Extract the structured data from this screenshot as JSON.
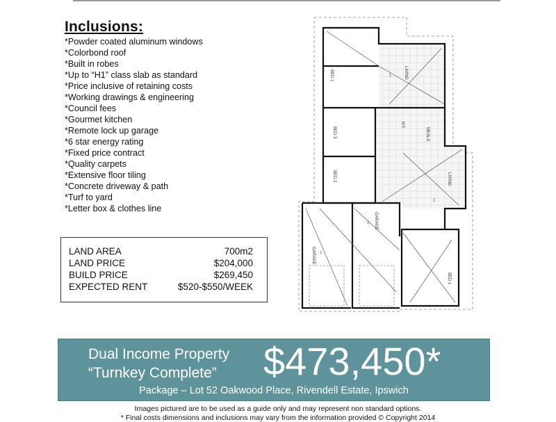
{
  "inclusions": {
    "title": "Inclusions:",
    "items": [
      "*Powder coated aluminum windows",
      "*Colorbond roof",
      "*Built in robes",
      "*Up to “H1” class slab as standard",
      "*Price inclusive of retaining costs",
      "*Working drawings & engineering",
      "*Council fees",
      "*Gourmet kitchen",
      "*Remote lock up garage",
      "*6 star energy rating",
      "*Fixed price contract",
      "*Quality carpets",
      "*Extensive floor tiling",
      "*Concrete driveway & path",
      "*Turf to yard",
      "*Letter box & clothes line"
    ]
  },
  "facts": [
    {
      "label": "LAND AREA",
      "value": "700m2"
    },
    {
      "label": "LAND PRICE",
      "value": "$204,000"
    },
    {
      "label": "BUILD PRICE",
      "value": "$269,450"
    },
    {
      "label": "EXPECTED RENT",
      "value": "$520-$550/WEEK"
    }
  ],
  "floorplan": {
    "rooms": {
      "bed1a": "BED 1",
      "living1": "LIVING",
      "living1_num": "1",
      "bed3": "BED 3",
      "bed2": "BED 2",
      "kit": "KIT",
      "meals": "MEALS",
      "living2": "LIVING",
      "living2_num": "2",
      "garage1": "GARAGE",
      "garage1_num": "1",
      "garage2": "GARAGE",
      "garage2_num": "2",
      "bed1b": "BED 1"
    }
  },
  "banner": {
    "line1": "Dual Income Property",
    "line2": "“Turnkey Complete”",
    "price": "$473,450*",
    "package": "Package – Lot 52 Oakwood Place, Rivendell Estate, Ipswich",
    "color": "#5f939b"
  },
  "disclaimer": {
    "line1": "Images pictured are to be used as a guide only and may represent non standard options.",
    "line2": "* Final costs dimensions and inclusions may vary from the information provided © Copyright 2014"
  }
}
